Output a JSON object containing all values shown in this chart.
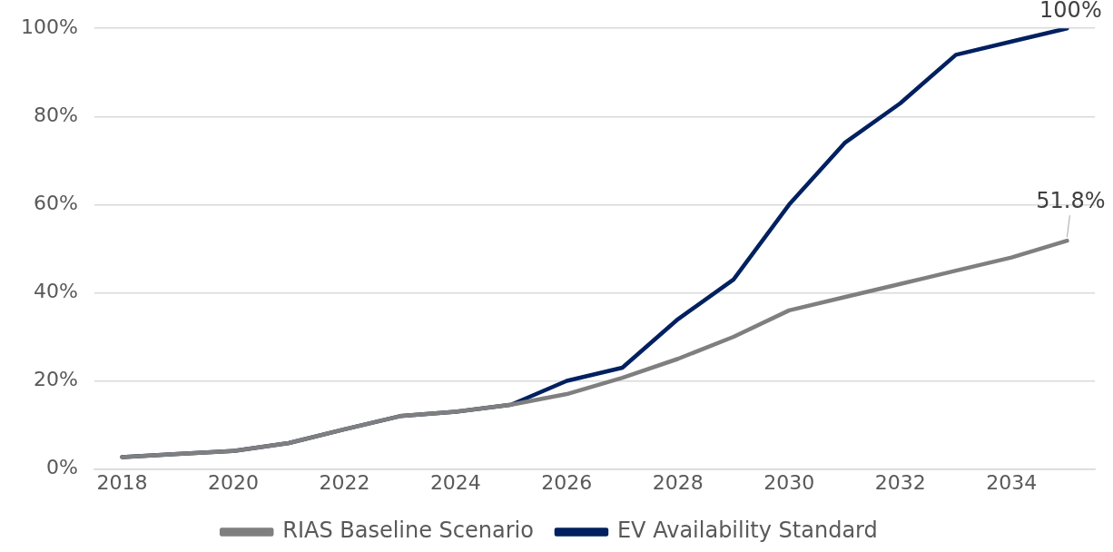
{
  "chart_data": {
    "type": "line",
    "x": [
      2018,
      2019,
      2020,
      2021,
      2022,
      2023,
      2024,
      2025,
      2026,
      2027,
      2028,
      2029,
      2030,
      2031,
      2032,
      2033,
      2034,
      2035
    ],
    "series": [
      {
        "name": "RIAS Baseline Scenario",
        "color": "#7f7f7f",
        "values": [
          2.7,
          3.4,
          4.1,
          5.9,
          9,
          12,
          13,
          14.6,
          17,
          20.7,
          25,
          30,
          36,
          39,
          42,
          45,
          48,
          51.8
        ],
        "value_labels": [
          null,
          null,
          null,
          null,
          null,
          null,
          null,
          null,
          null,
          null,
          null,
          null,
          null,
          null,
          null,
          null,
          null,
          "51.8%"
        ]
      },
      {
        "name": "EV Availability Standard",
        "color": "#002060",
        "values": [
          2.7,
          3.4,
          4.1,
          5.9,
          9,
          12,
          13,
          14.6,
          20,
          23,
          34,
          43,
          60,
          74,
          83,
          94,
          97,
          100
        ],
        "value_labels": [
          null,
          null,
          null,
          null,
          null,
          null,
          null,
          null,
          null,
          null,
          null,
          null,
          null,
          null,
          null,
          null,
          null,
          "100%"
        ]
      }
    ],
    "xlim": [
      2017.5,
      2035.5
    ],
    "xticks": [
      2018,
      2020,
      2022,
      2024,
      2026,
      2028,
      2030,
      2032,
      2034
    ],
    "ylim": [
      0,
      100
    ],
    "yticks": [
      {
        "value": 0,
        "label": "0%"
      },
      {
        "value": 20,
        "label": "20%"
      },
      {
        "value": 40,
        "label": "40%"
      },
      {
        "value": 60,
        "label": "60%"
      },
      {
        "value": 80,
        "label": "80%"
      },
      {
        "value": 100,
        "label": "100%"
      }
    ],
    "grid": "y",
    "legend": "bottom",
    "marker": "none",
    "line_style": "solid"
  }
}
